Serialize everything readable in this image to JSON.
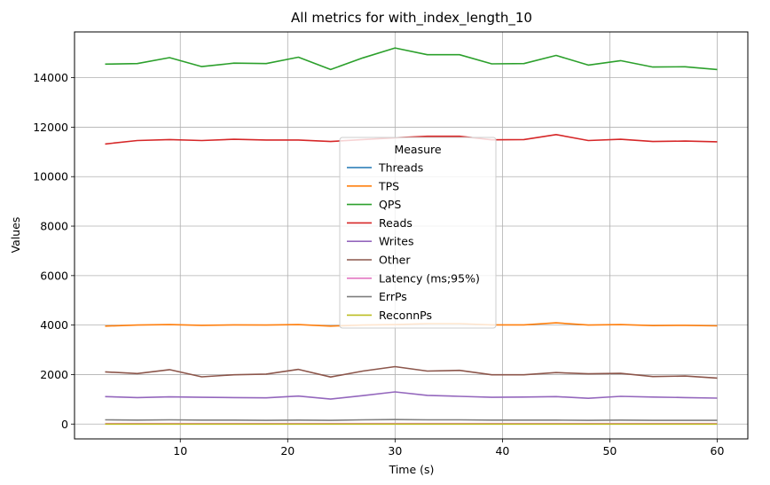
{
  "chart_data": {
    "type": "line",
    "title": "All metrics for with_index_length_10",
    "xlabel": "Time (s)",
    "ylabel": "Values",
    "xlim": [
      0.15,
      62.85
    ],
    "ylim": [
      -600,
      15850
    ],
    "x_ticks": [
      10,
      20,
      30,
      40,
      50,
      60
    ],
    "y_ticks": [
      0,
      2000,
      4000,
      6000,
      8000,
      10000,
      12000,
      14000
    ],
    "grid": true,
    "legend": {
      "title": "Measure",
      "placement": "center"
    },
    "x": [
      3,
      6,
      9,
      12,
      15,
      18,
      21,
      24,
      27,
      30,
      33,
      36,
      39,
      42,
      45,
      48,
      51,
      54,
      57,
      60
    ],
    "series": [
      {
        "name": "Threads",
        "color": "#1f77b4",
        "values": [
          16,
          16,
          16,
          16,
          16,
          16,
          16,
          16,
          16,
          16,
          16,
          16,
          16,
          16,
          16,
          16,
          16,
          16,
          16,
          16
        ]
      },
      {
        "name": "TPS",
        "color": "#ff7f0e",
        "values": [
          3960,
          4000,
          4020,
          3990,
          4010,
          4000,
          4020,
          3960,
          4000,
          4020,
          4060,
          4060,
          4010,
          4010,
          4090,
          4000,
          4020,
          3980,
          3990,
          3970
        ]
      },
      {
        "name": "QPS",
        "color": "#2ca02c",
        "values": [
          14550,
          14570,
          14810,
          14450,
          14590,
          14570,
          14830,
          14330,
          14800,
          15200,
          14930,
          14930,
          14560,
          14570,
          14900,
          14510,
          14690,
          14430,
          14440,
          14330
        ]
      },
      {
        "name": "Reads",
        "color": "#d62728",
        "values": [
          11320,
          11460,
          11500,
          11460,
          11510,
          11480,
          11480,
          11420,
          11500,
          11570,
          11630,
          11630,
          11490,
          11500,
          11700,
          11460,
          11510,
          11420,
          11440,
          11410
        ]
      },
      {
        "name": "Writes",
        "color": "#9467bd",
        "values": [
          1110,
          1070,
          1100,
          1080,
          1070,
          1060,
          1130,
          1010,
          1150,
          1300,
          1160,
          1120,
          1080,
          1090,
          1110,
          1040,
          1120,
          1090,
          1070,
          1050
        ]
      },
      {
        "name": "Other",
        "color": "#8c564b",
        "values": [
          2110,
          2040,
          2200,
          1910,
          1990,
          2020,
          2210,
          1900,
          2140,
          2320,
          2140,
          2170,
          1990,
          1990,
          2080,
          2030,
          2050,
          1920,
          1940,
          1860
        ]
      },
      {
        "name": "Latency (ms;95%)",
        "color": "#e377c2",
        "values": [
          20,
          20,
          20,
          20,
          20,
          20,
          20,
          20,
          20,
          20,
          20,
          20,
          20,
          20,
          20,
          20,
          20,
          20,
          20,
          20
        ]
      },
      {
        "name": "ErrPs",
        "color": "#7f7f7f",
        "values": [
          170,
          160,
          170,
          160,
          160,
          150,
          160,
          150,
          170,
          180,
          170,
          170,
          160,
          160,
          160,
          150,
          160,
          150,
          150,
          150
        ]
      },
      {
        "name": "ReconnPs",
        "color": "#bcbd22",
        "values": [
          0,
          0,
          0,
          0,
          0,
          0,
          0,
          0,
          0,
          0,
          0,
          0,
          0,
          0,
          0,
          0,
          0,
          0,
          0,
          0
        ]
      }
    ]
  }
}
